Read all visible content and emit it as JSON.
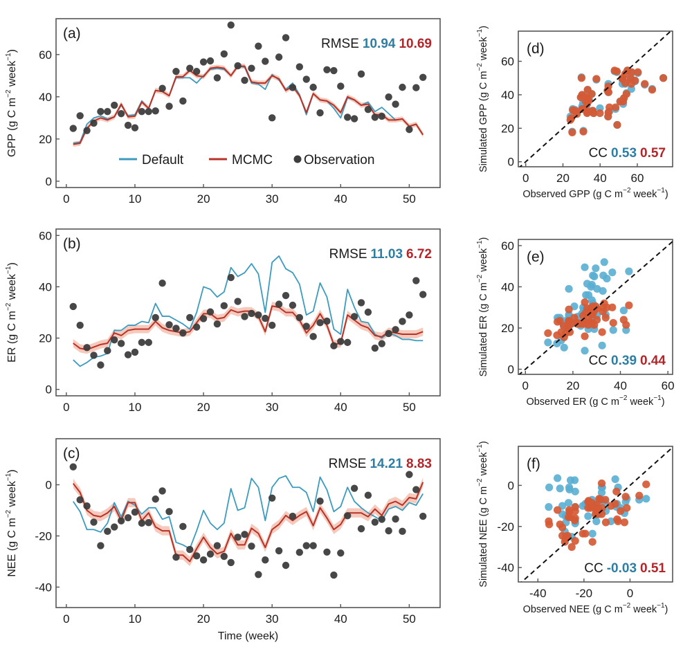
{
  "colors": {
    "default": "#3b9bbf",
    "mcmc": "#b83228",
    "mcmc_band": "#f2b8a6",
    "observation": "#3d3d3d",
    "scatter_default": "#5aaed3",
    "scatter_mcmc": "#d55a35",
    "default_text": "#2e7ea3",
    "mcmc_text": "#b0262a"
  },
  "legend": {
    "default": "Default",
    "mcmc": "MCMC",
    "observation": "Observation"
  },
  "stat_labels": {
    "rmse": "RMSE",
    "cc": "CC"
  },
  "chart_data": [
    {
      "id": "a",
      "type": "line",
      "panel_label": "(a)",
      "ylabel": "GPP (g C m⁻² week⁻¹)",
      "xlabel": "",
      "xlim": [
        -1.5,
        54.5
      ],
      "ylim": [
        -3,
        77
      ],
      "xticks": [
        0,
        10,
        20,
        30,
        40,
        50
      ],
      "yticks": [
        0,
        20,
        40,
        60
      ],
      "rmse": {
        "default": "10.94",
        "mcmc": "10.69"
      },
      "legend_position": "bottom-center",
      "x": [
        1,
        2,
        3,
        4,
        5,
        6,
        7,
        8,
        9,
        10,
        11,
        12,
        13,
        14,
        15,
        16,
        17,
        18,
        19,
        20,
        21,
        22,
        23,
        24,
        25,
        26,
        27,
        28,
        29,
        30,
        31,
        32,
        33,
        34,
        35,
        36,
        37,
        38,
        39,
        40,
        41,
        42,
        43,
        44,
        45,
        46,
        47,
        48,
        49,
        50,
        51,
        52
      ],
      "series": [
        {
          "name": "Default",
          "values": [
            18,
            18.5,
            27,
            30,
            31,
            29.5,
            30.5,
            36,
            31,
            31.5,
            38,
            34.5,
            43,
            42.5,
            40.5,
            49,
            49,
            49,
            46.5,
            50,
            53,
            53.5,
            53,
            50,
            54.5,
            54,
            46.5,
            46,
            43.5,
            50.5,
            48,
            43.5,
            46.5,
            41,
            31.5,
            41.5,
            38.5,
            38,
            34.5,
            30,
            39.5,
            38.5,
            36,
            37.5,
            33,
            35,
            32,
            29,
            29.5,
            26,
            27,
            22
          ]
        },
        {
          "name": "MCMC",
          "values": [
            17.5,
            18,
            25,
            28.5,
            30,
            29,
            30.5,
            36.5,
            30.5,
            30.8,
            37.5,
            34.5,
            43,
            42.5,
            40.5,
            49.5,
            49.5,
            52.5,
            50,
            49.5,
            53.5,
            54,
            53.5,
            50,
            54.5,
            54.5,
            47,
            46.5,
            46.5,
            50,
            48.5,
            43,
            45,
            40.5,
            32.5,
            41.5,
            38.5,
            38,
            36,
            32.5,
            40,
            38.5,
            36,
            36.5,
            31.5,
            31.5,
            29,
            29,
            29.5,
            26,
            27,
            22
          ],
          "band_halfwidth": 1.2
        },
        {
          "name": "Observation",
          "values": [
            25,
            31,
            24,
            27.5,
            33,
            33,
            36,
            32,
            26.5,
            25.3,
            33,
            33,
            33.3,
            44,
            35.5,
            52,
            38,
            53.5,
            52,
            56.5,
            57,
            49,
            60.3,
            74,
            54.7,
            47.8,
            53.5,
            64,
            56.8,
            30,
            58.8,
            68,
            44.4,
            54.2,
            48.3,
            44.5,
            32.4,
            52.8,
            52.4,
            45,
            30.3,
            29.6,
            50.8,
            34,
            30.3,
            30.8,
            39.9,
            36.5,
            44.5,
            24.5,
            44.3,
            49.2
          ]
        }
      ]
    },
    {
      "id": "b",
      "type": "line",
      "panel_label": "(b)",
      "ylabel": "ER (g C m⁻² week⁻¹)",
      "xlabel": "",
      "xlim": [
        -1.5,
        54.5
      ],
      "ylim": [
        -2.5,
        62.5
      ],
      "xticks": [
        0,
        10,
        20,
        30,
        40,
        50
      ],
      "yticks": [
        0,
        20,
        40,
        60
      ],
      "rmse": {
        "default": "11.03",
        "mcmc": "6.72"
      },
      "x": [
        1,
        2,
        3,
        4,
        5,
        6,
        7,
        8,
        9,
        10,
        11,
        12,
        13,
        14,
        15,
        16,
        17,
        18,
        19,
        20,
        21,
        22,
        23,
        24,
        25,
        26,
        27,
        28,
        29,
        30,
        31,
        32,
        33,
        34,
        35,
        36,
        37,
        38,
        39,
        40,
        41,
        42,
        43,
        44,
        45,
        46,
        47,
        48,
        49,
        50,
        51,
        52
      ],
      "series": [
        {
          "name": "Default",
          "values": [
            11.5,
            9,
            10.5,
            12.5,
            13,
            14,
            23,
            23,
            25,
            25,
            26.5,
            26,
            33.5,
            28.5,
            28.5,
            27,
            25.5,
            23.5,
            30,
            40,
            39,
            36,
            38,
            47.5,
            44,
            45.5,
            49,
            45,
            30,
            49.5,
            52,
            47,
            45.5,
            41,
            29,
            30.5,
            41.5,
            36,
            23.5,
            21.5,
            39,
            32,
            26.5,
            26,
            21.5,
            20,
            22,
            21,
            19.5,
            19.5,
            19,
            19
          ]
        },
        {
          "name": "MCMC",
          "values": [
            18,
            16,
            15.5,
            16.5,
            17.5,
            18,
            22,
            21,
            23,
            23.5,
            23.5,
            23.5,
            26.5,
            24,
            23,
            22.5,
            22,
            22.5,
            26,
            29.5,
            29.5,
            27.5,
            28,
            31,
            30,
            30.5,
            30.5,
            28.5,
            22.5,
            32.5,
            32,
            30,
            30,
            27,
            22,
            25,
            29.5,
            25,
            17.5,
            18,
            29,
            27,
            25,
            24,
            21,
            20.5,
            22.5,
            22,
            21.5,
            21.5,
            21.5,
            22.5
          ],
          "band_halfwidth": 1.6
        },
        {
          "name": "Observation",
          "values": [
            32.3,
            25,
            16.3,
            13.3,
            9.5,
            15.1,
            19.3,
            17.9,
            13.5,
            14.5,
            18.3,
            18.3,
            28,
            41.4,
            25.2,
            23.8,
            22,
            28,
            24.3,
            27.6,
            30.2,
            25.5,
            32.6,
            43.6,
            34.3,
            28.4,
            29.6,
            29,
            27.7,
            25,
            33.2,
            36.6,
            32.8,
            28,
            24.6,
            20.6,
            26,
            26.6,
            17,
            18.7,
            18.3,
            28.4,
            33.8,
            30.1,
            16.1,
            17.8,
            21.8,
            23.3,
            26.5,
            29,
            42.4,
            37
          ]
        }
      ]
    },
    {
      "id": "c",
      "type": "line",
      "panel_label": "(c)",
      "ylabel": "NEE (g C m⁻² week⁻¹)",
      "xlabel": "Time (week)",
      "xlim": [
        -1.5,
        54.5
      ],
      "ylim": [
        -48,
        18
      ],
      "xticks": [
        0,
        10,
        20,
        30,
        40,
        50
      ],
      "yticks": [
        -40,
        -20,
        0
      ],
      "rmse": {
        "default": "14.21",
        "mcmc": "8.83"
      },
      "x": [
        1,
        2,
        3,
        4,
        5,
        6,
        7,
        8,
        9,
        10,
        11,
        12,
        13,
        14,
        15,
        16,
        17,
        18,
        19,
        20,
        21,
        22,
        23,
        24,
        25,
        26,
        27,
        28,
        29,
        30,
        31,
        32,
        33,
        34,
        35,
        36,
        37,
        38,
        39,
        40,
        41,
        42,
        43,
        44,
        45,
        46,
        47,
        48,
        49,
        50,
        51,
        52
      ],
      "series": [
        {
          "name": "Default",
          "values": [
            -6.5,
            -10.5,
            -17.5,
            -17.5,
            -18.5,
            -15,
            -7,
            -12.5,
            -6.5,
            -8,
            -11.5,
            -9,
            -9,
            -13.5,
            -12.5,
            -22.5,
            -23.5,
            -25,
            -18,
            -10,
            -15,
            -17.5,
            -15,
            -1.5,
            -10,
            -9,
            2.5,
            -1,
            -14,
            -1,
            2.5,
            3.5,
            -1,
            -1,
            -3,
            -10.5,
            3,
            -2,
            -10.5,
            -8.5,
            -1,
            -6.5,
            -9,
            -11,
            -12.5,
            -14,
            -9.5,
            -8.5,
            -10,
            -7,
            -8,
            -3.5
          ]
        },
        {
          "name": "MCMC",
          "values": [
            0.5,
            -3,
            -10,
            -12,
            -12.5,
            -11,
            -8.5,
            -14,
            -7,
            -7,
            -14,
            -11,
            -16.5,
            -18,
            -18,
            -27.5,
            -27.5,
            -30,
            -25,
            -20.5,
            -24.5,
            -27,
            -26,
            -19,
            -23.5,
            -23.5,
            -17,
            -19,
            -24.5,
            -17.5,
            -15.5,
            -12,
            -14,
            -12,
            -10.5,
            -16,
            -9,
            -13,
            -17.5,
            -15.5,
            -11,
            -11,
            -11,
            -12.5,
            -9.5,
            -12,
            -7.5,
            -6.5,
            -8,
            -5,
            -5.5,
            1
          ],
          "band_halfwidth": 1.8
        },
        {
          "name": "Observation",
          "values": [
            7,
            -5.9,
            -8.3,
            -14.6,
            -23.8,
            -18.2,
            -16.5,
            -14.1,
            -12.9,
            -10.7,
            -15,
            -14.8,
            -5.6,
            -2.4,
            -10.5,
            -28.3,
            -16.3,
            -25.3,
            -27.8,
            -29.4,
            -27.1,
            -23.8,
            -28,
            -30.4,
            -20.5,
            -19.4,
            -24,
            -35.1,
            -29.4,
            -5.2,
            -25.8,
            -31.5,
            -12.3,
            -26.4,
            -23.8,
            -23.8,
            -6.4,
            -26.3,
            -35.3,
            -26.7,
            -12.1,
            -1.4,
            -17.2,
            -4.1,
            -14.6,
            -13.5,
            -18,
            -13.4,
            -18.2,
            4,
            -1.9,
            -12.3
          ]
        }
      ]
    },
    {
      "id": "d",
      "type": "scatter",
      "panel_label": "(d)",
      "source_panel": "a",
      "xlabel": "Observed GPP (g C m⁻² week⁻¹)",
      "ylabel": "Simulated GPP (g C m⁻² week⁻¹)",
      "xlim": [
        -4,
        79
      ],
      "ylim": [
        -3,
        78
      ],
      "xticks": [
        0,
        20,
        40,
        60
      ],
      "yticks": [
        0,
        20,
        40,
        60
      ],
      "cc": {
        "default": "0.53",
        "mcmc": "0.57"
      },
      "reference_line": "1:1 dashed"
    },
    {
      "id": "e",
      "type": "scatter",
      "panel_label": "(e)",
      "source_panel": "b",
      "xlabel": "Observed ER (g C m⁻² week⁻¹)",
      "ylabel": "Simulated ER (g C m⁻² week⁻¹)",
      "xlim": [
        -3,
        62
      ],
      "ylim": [
        -2.5,
        63
      ],
      "xticks": [
        0,
        20,
        40,
        60
      ],
      "yticks": [
        0,
        20,
        40,
        60
      ],
      "cc": {
        "default": "0.39",
        "mcmc": "0.44"
      },
      "reference_line": "1:1 dashed"
    },
    {
      "id": "f",
      "type": "scatter",
      "panel_label": "(f)",
      "source_panel": "c",
      "xlabel": "Observed NEE (g C m⁻² week⁻¹)",
      "ylabel": "Simulated NEE (g C m⁻² week⁻¹)",
      "xlim": [
        -48.5,
        18.5
      ],
      "ylim": [
        -47,
        19
      ],
      "xticks": [
        -40,
        -20,
        0
      ],
      "yticks": [
        -40,
        -20,
        0
      ],
      "cc": {
        "default": "-0.03",
        "mcmc": "0.51"
      },
      "reference_line": "1:1 dashed"
    }
  ]
}
